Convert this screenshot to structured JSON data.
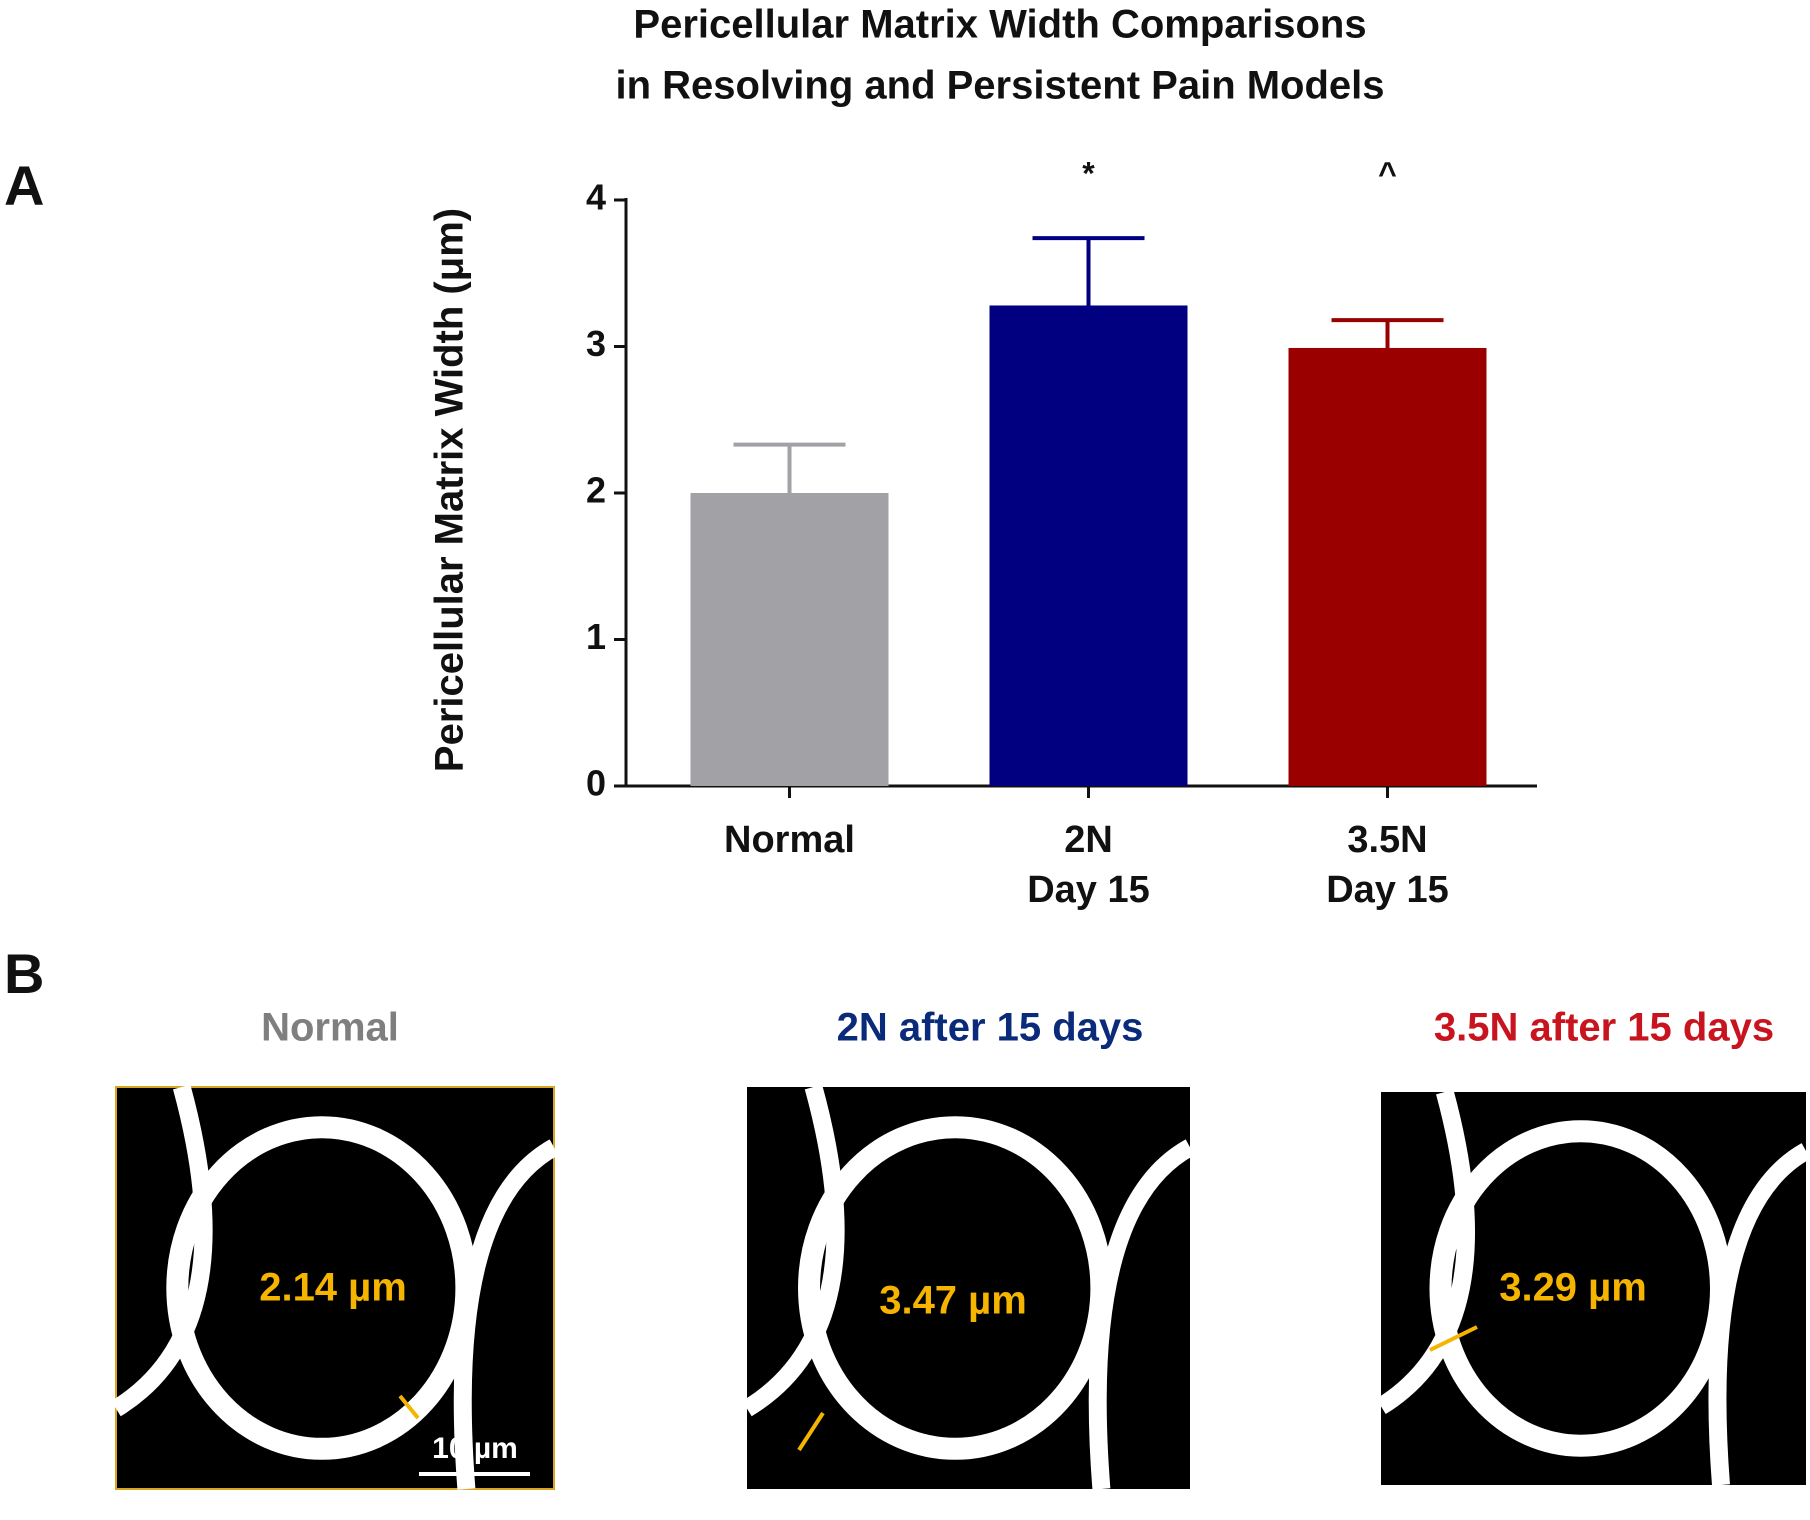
{
  "chart_data": {
    "type": "bar",
    "title": [
      "Pericellular Matrix Width Comparisons",
      "in Resolving and Persistent Pain Models"
    ],
    "panel_label": "A",
    "y_label": "Pericellular Matrix Width (μm)",
    "categories": [
      [
        "Normal"
      ],
      [
        "2N",
        "Day 15"
      ],
      [
        "3.5N",
        "Day 15"
      ]
    ],
    "values": [
      2.0,
      3.28,
      2.99
    ],
    "errors": [
      0.33,
      0.46,
      0.19
    ],
    "colors": [
      "#a2a2a6",
      "#000080",
      "#9b0000"
    ],
    "significance": [
      null,
      "*",
      "^"
    ],
    "ylim": [
      0,
      4
    ],
    "yticks": [
      0,
      1,
      2,
      3,
      4
    ]
  },
  "panel_b": {
    "panel_label": "B",
    "images": [
      {
        "title": "Normal",
        "color": "#7f7f7f",
        "measurement": "2.14 µm",
        "scale_bar": "10 µm"
      },
      {
        "title": "2N after 15 days",
        "color": "#0a2a7a",
        "measurement": "3.47 µm"
      },
      {
        "title": "3.5N after 15 days",
        "color": "#c8141e",
        "measurement": "3.29 µm"
      }
    ]
  }
}
